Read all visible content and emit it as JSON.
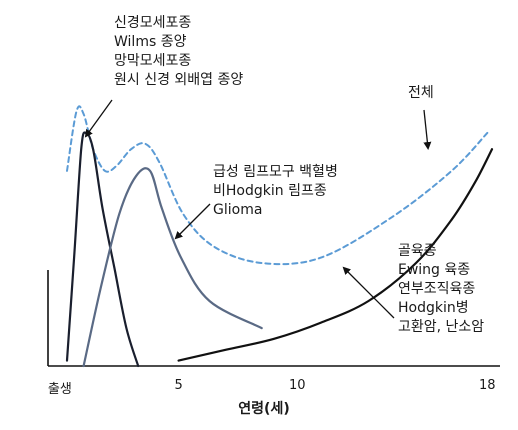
{
  "chart_data": {
    "type": "line",
    "xlabel": "연령(세)",
    "ylabel": "",
    "xlim": [
      -0.5,
      18.2
    ],
    "ylim": [
      0,
      100
    ],
    "x_ticks": [
      {
        "value": 0,
        "label": "출생"
      },
      {
        "value": 5,
        "label": "5"
      },
      {
        "value": 10,
        "label": "10"
      },
      {
        "value": 18,
        "label": "18"
      }
    ],
    "series": [
      {
        "name": "전체",
        "style": "dashed",
        "color": "#5b9bd5",
        "points": [
          [
            0.3,
            72
          ],
          [
            0.7,
            94
          ],
          [
            1.0,
            93
          ],
          [
            1.4,
            80
          ],
          [
            1.9,
            72
          ],
          [
            2.4,
            74
          ],
          [
            3.0,
            80
          ],
          [
            3.6,
            82
          ],
          [
            4.2,
            75
          ],
          [
            5.2,
            56
          ],
          [
            6.5,
            44
          ],
          [
            8.5,
            38
          ],
          [
            11.0,
            40
          ],
          [
            14.0,
            55
          ],
          [
            16.5,
            72
          ],
          [
            18.0,
            86
          ]
        ]
      },
      {
        "name": "신경모세포종 · Wilms 종양 · 망막모세포종 · 원시 신경 외배엽 종양",
        "style": "solid",
        "color": "#1a1f2e",
        "points": [
          [
            0.3,
            2
          ],
          [
            0.6,
            40
          ],
          [
            0.9,
            80
          ],
          [
            1.1,
            86
          ],
          [
            1.4,
            80
          ],
          [
            1.8,
            58
          ],
          [
            2.3,
            36
          ],
          [
            2.8,
            14
          ],
          [
            3.3,
            0
          ]
        ]
      },
      {
        "name": "급성 림프모구 백혈병 · 비Hodgkin 림프종 · Glioma",
        "style": "solid",
        "color": "#5a6a85",
        "points": [
          [
            1.0,
            0
          ],
          [
            1.7,
            28
          ],
          [
            2.5,
            56
          ],
          [
            3.2,
            70
          ],
          [
            3.8,
            72
          ],
          [
            4.3,
            58
          ],
          [
            5.1,
            40
          ],
          [
            6.3,
            24
          ],
          [
            8.5,
            14
          ]
        ]
      },
      {
        "name": "골육종 · Ewing 육종 · 연부조직육종 · Hodgkin병 · 고환암, 난소암",
        "style": "solid",
        "color": "#111111",
        "points": [
          [
            5.0,
            2
          ],
          [
            7.0,
            6
          ],
          [
            9.0,
            10
          ],
          [
            11.0,
            16
          ],
          [
            13.0,
            24
          ],
          [
            15.0,
            38
          ],
          [
            16.5,
            54
          ],
          [
            17.5,
            68
          ],
          [
            18.2,
            80
          ]
        ]
      }
    ],
    "annotations": {
      "group_a": [
        "신경모세포종",
        "Wilms 종양",
        "망막모세포종",
        "원시 신경 외배엽 종양"
      ],
      "group_b": [
        "급성 림프모구 백혈병",
        "비Hodgkin 림프종",
        "Glioma"
      ],
      "group_c": [
        "골육종",
        "Ewing 육종",
        "연부조직육종",
        "Hodgkin병",
        "고환암, 난소암"
      ],
      "total": "전체"
    }
  }
}
